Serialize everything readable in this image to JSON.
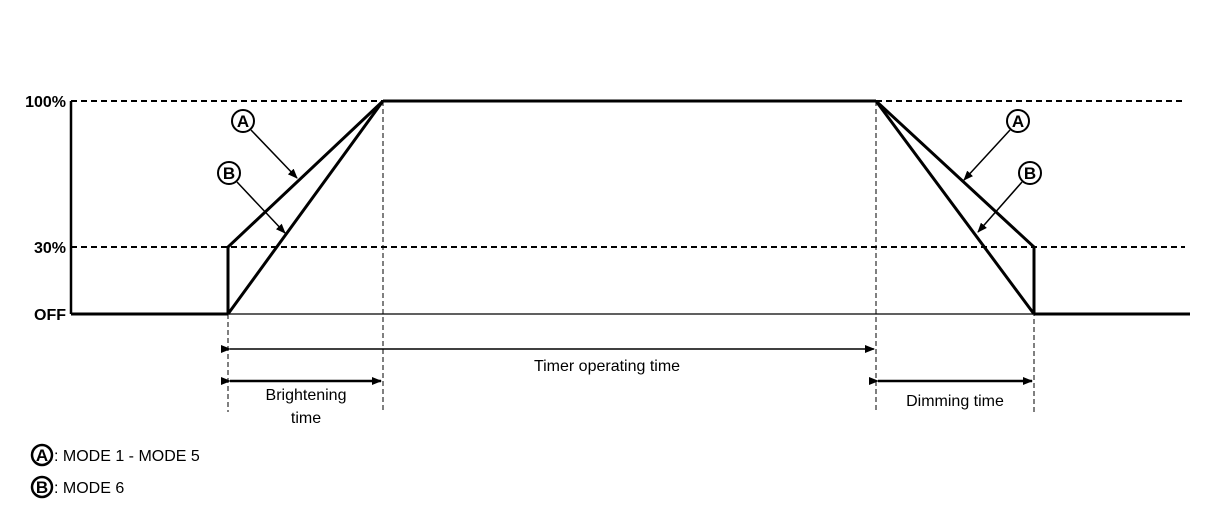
{
  "levels": {
    "top": "100%",
    "mid": "30%",
    "off": "OFF"
  },
  "callouts": {
    "a": "A",
    "b": "B"
  },
  "spans": {
    "timer": "Timer operating time",
    "brightening_line1": "Brightening",
    "brightening_line2": "time",
    "dimming": "Dimming time"
  },
  "legend": [
    {
      "marker": "A",
      "text": ": MODE 1 - MODE 5"
    },
    {
      "marker": "B",
      "text": ": MODE 6"
    }
  ],
  "colors": {
    "line": "#000000",
    "background": "#ffffff"
  }
}
